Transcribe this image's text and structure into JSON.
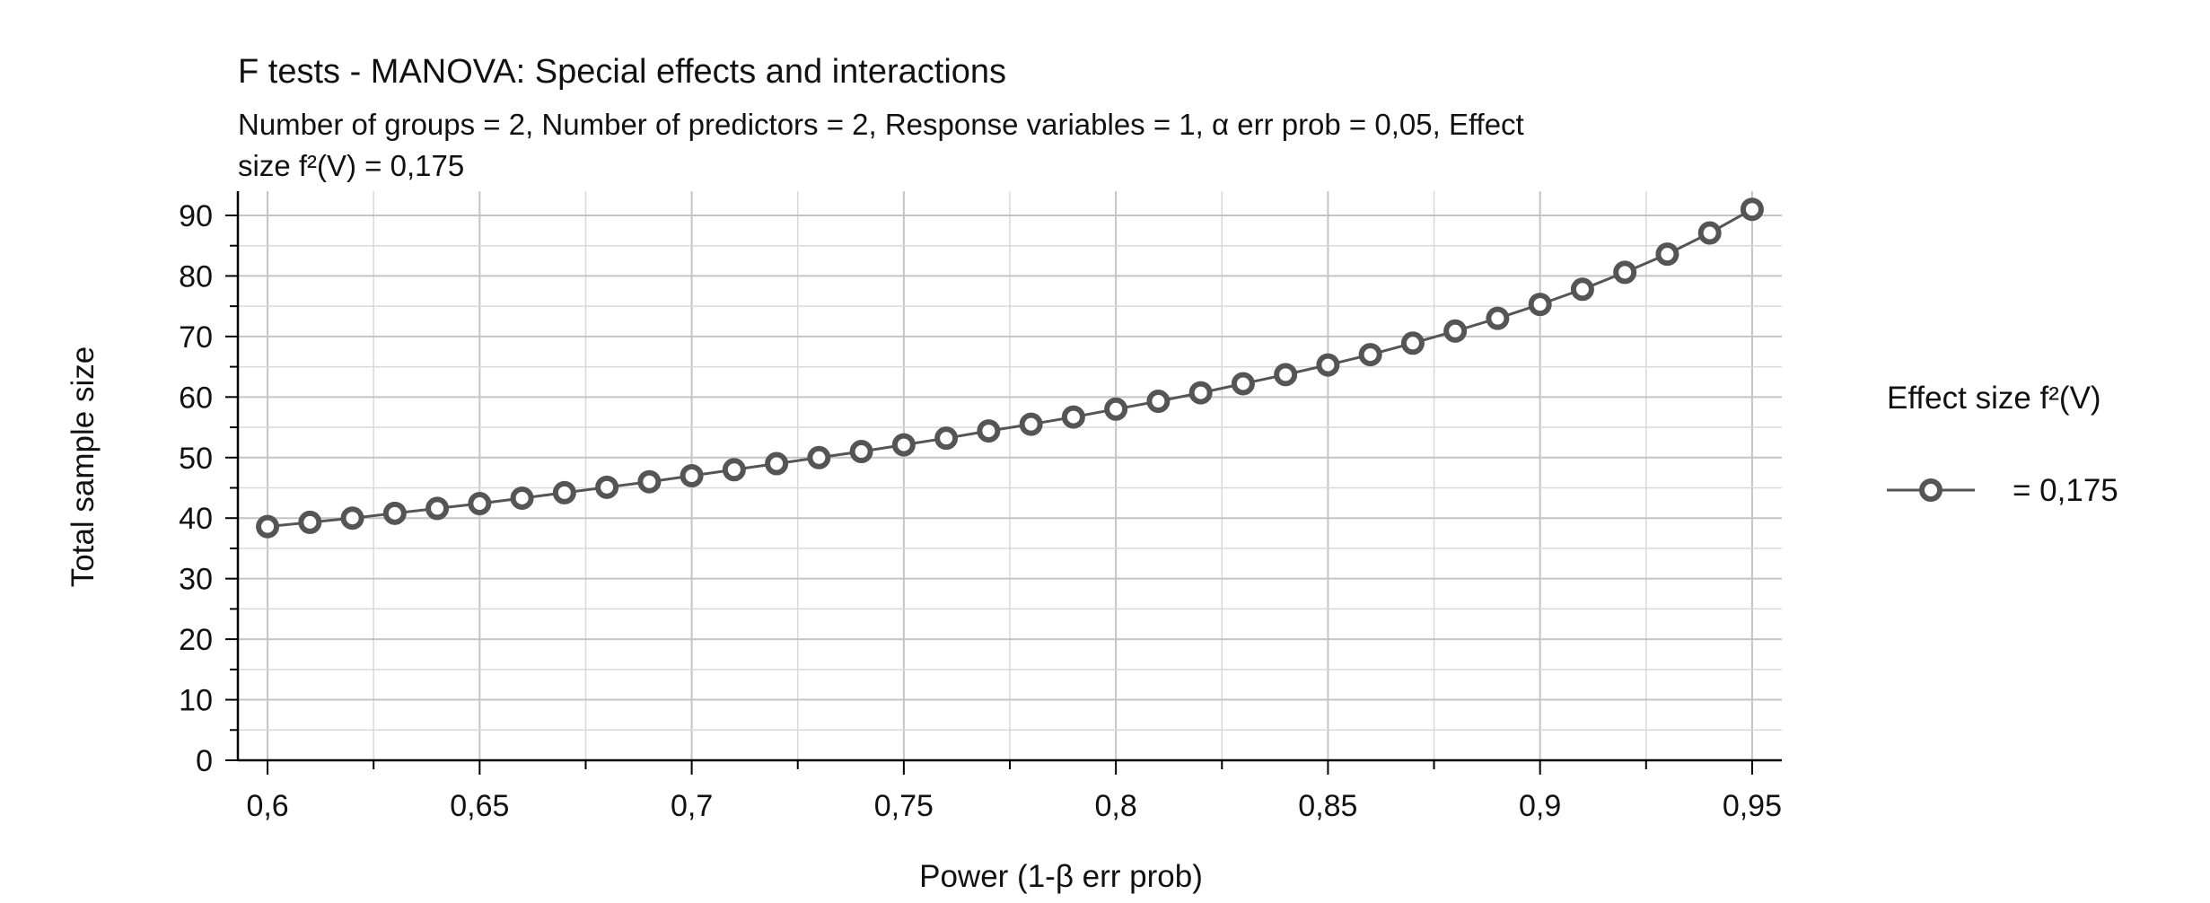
{
  "chart_data": {
    "type": "line",
    "title": "F tests - MANOVA: Special effects and interactions",
    "subtitle_lines": [
      "Number of groups = 2, Number of predictors = 2, Response variables = 1, α err prob = 0,05, Effect",
      "size f²(V) = 0,175"
    ],
    "xlabel": "Power (1-β err prob)",
    "ylabel": "Total sample size",
    "xlim": [
      0.593,
      0.957
    ],
    "ylim": [
      0,
      94
    ],
    "x_ticks": [
      0.6,
      0.65,
      0.7,
      0.75,
      0.8,
      0.85,
      0.9,
      0.95
    ],
    "x_tick_labels": [
      "0,6",
      "0,65",
      "0,7",
      "0,75",
      "0,8",
      "0,85",
      "0,9",
      "0,95"
    ],
    "y_ticks": [
      0,
      10,
      20,
      30,
      40,
      50,
      60,
      70,
      80,
      90
    ],
    "y_tick_labels": [
      "0",
      "10",
      "20",
      "30",
      "40",
      "50",
      "60",
      "70",
      "80",
      "90"
    ],
    "grid": true,
    "legend_title": "Effect size f²(V)",
    "legend_position": "right",
    "series": [
      {
        "name": "= 0,175",
        "color": "#555555",
        "x": [
          0.6,
          0.61,
          0.62,
          0.63,
          0.64,
          0.65,
          0.66,
          0.67,
          0.68,
          0.69,
          0.7,
          0.71,
          0.72,
          0.73,
          0.74,
          0.75,
          0.76,
          0.77,
          0.78,
          0.79,
          0.8,
          0.81,
          0.82,
          0.83,
          0.84,
          0.85,
          0.86,
          0.87,
          0.88,
          0.89,
          0.9,
          0.91,
          0.92,
          0.93,
          0.94,
          0.95
        ],
        "values": [
          38.6,
          39.3,
          40.0,
          40.8,
          41.6,
          42.4,
          43.3,
          44.2,
          45.1,
          46.0,
          47.0,
          48.0,
          49.0,
          50.0,
          51.0,
          52.1,
          53.2,
          54.4,
          55.5,
          56.7,
          58.0,
          59.3,
          60.7,
          62.2,
          63.7,
          65.3,
          67.0,
          68.9,
          70.9,
          73.0,
          75.3,
          77.8,
          80.6,
          83.6,
          87.1,
          91.0
        ]
      }
    ]
  }
}
